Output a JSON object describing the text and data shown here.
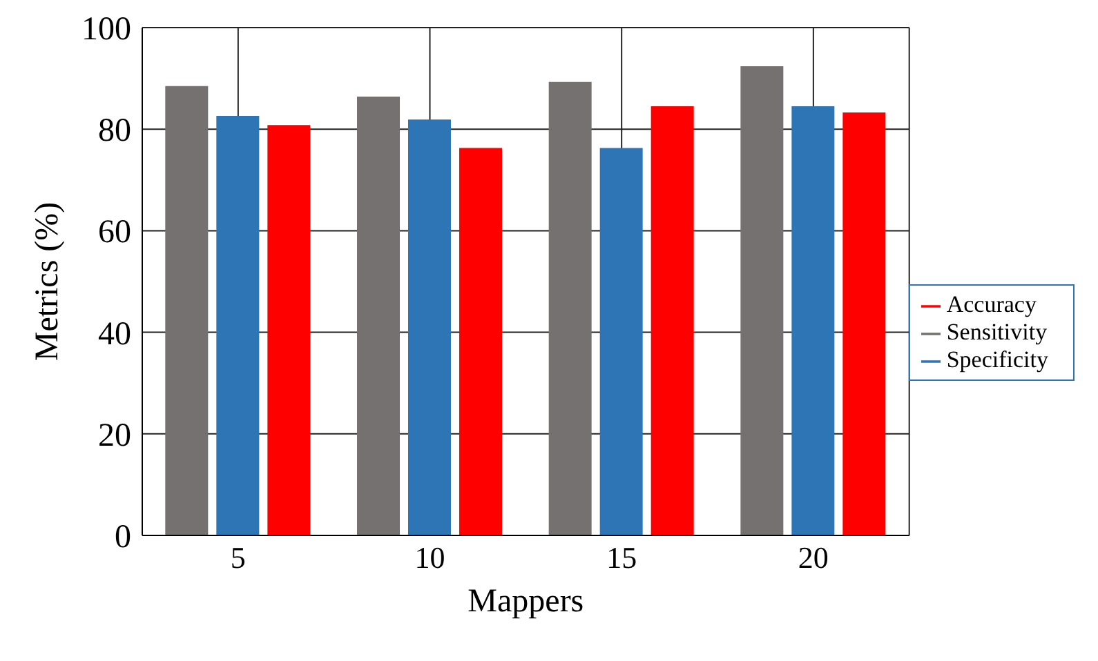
{
  "chart_data": {
    "type": "bar",
    "xlabel": "Mappers",
    "ylabel": "Metrics (%)",
    "categories": [
      "5",
      "10",
      "15",
      "20"
    ],
    "series": [
      {
        "name": "Sensitivity",
        "color": "#767171",
        "values": [
          88.5,
          86.4,
          89.3,
          92.4
        ]
      },
      {
        "name": "Specificity",
        "color": "#2e75b6",
        "values": [
          82.6,
          81.9,
          76.3,
          84.5
        ]
      },
      {
        "name": "Accuracy",
        "color": "#ff0000",
        "values": [
          80.8,
          76.3,
          84.5,
          83.3
        ]
      }
    ],
    "ylim": [
      0,
      100
    ],
    "yticks": [
      0,
      20,
      40,
      60,
      80,
      100
    ],
    "grid": true,
    "legend": "right"
  }
}
